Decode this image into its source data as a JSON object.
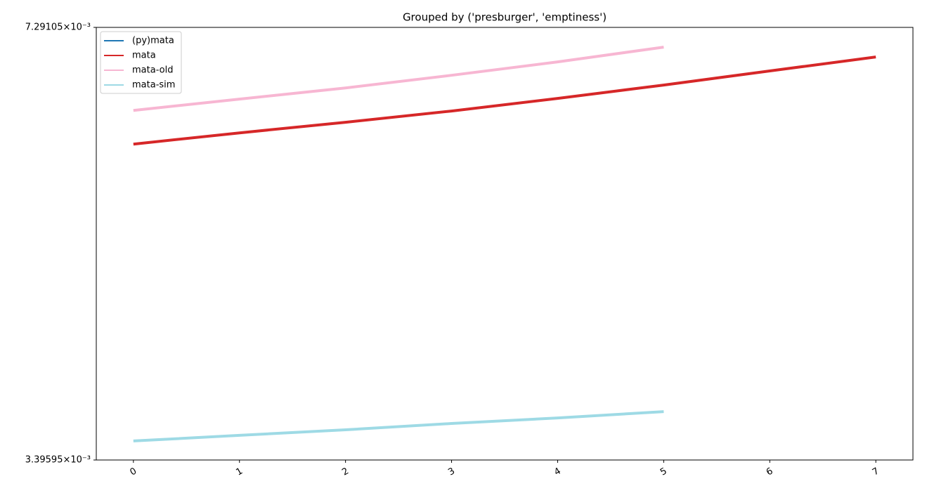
{
  "chart_data": {
    "type": "line",
    "title": "Grouped by ('presburger', 'emptiness')",
    "x": [
      0,
      1,
      2,
      3,
      4,
      5,
      6,
      7
    ],
    "series": [
      {
        "name": "(py)mata",
        "color": "#1f77b4",
        "values": [
          null,
          null,
          null,
          null,
          null,
          null,
          null,
          null
        ]
      },
      {
        "name": "mata",
        "color": "#d62728",
        "values": [
          0.005933,
          0.006052,
          0.006166,
          0.00629,
          0.006432,
          0.006585,
          0.006751,
          0.00692
        ]
      },
      {
        "name": "mata-old",
        "color": "#f7b6d2",
        "values": [
          0.006297,
          0.006424,
          0.006552,
          0.0067,
          0.00686,
          0.007041,
          null,
          null
        ]
      },
      {
        "name": "mata-sim",
        "color": "#9edae5",
        "values": [
          0.003512,
          0.003547,
          0.003582,
          0.003622,
          0.003658,
          0.003699,
          null,
          null
        ]
      }
    ],
    "xlim": [
      -0.35,
      7.35
    ],
    "xticks": [
      0,
      1,
      2,
      3,
      4,
      5,
      6,
      7
    ],
    "ylim": [
      0.00339595,
      0.00729105
    ],
    "y_scale": "log",
    "yticks": [
      {
        "value": 0.00339595,
        "label": "3.39595×10⁻³"
      },
      {
        "value": 0.00729105,
        "label": "7.29105×10⁻³"
      }
    ],
    "legend": "upper left",
    "grid": false
  }
}
